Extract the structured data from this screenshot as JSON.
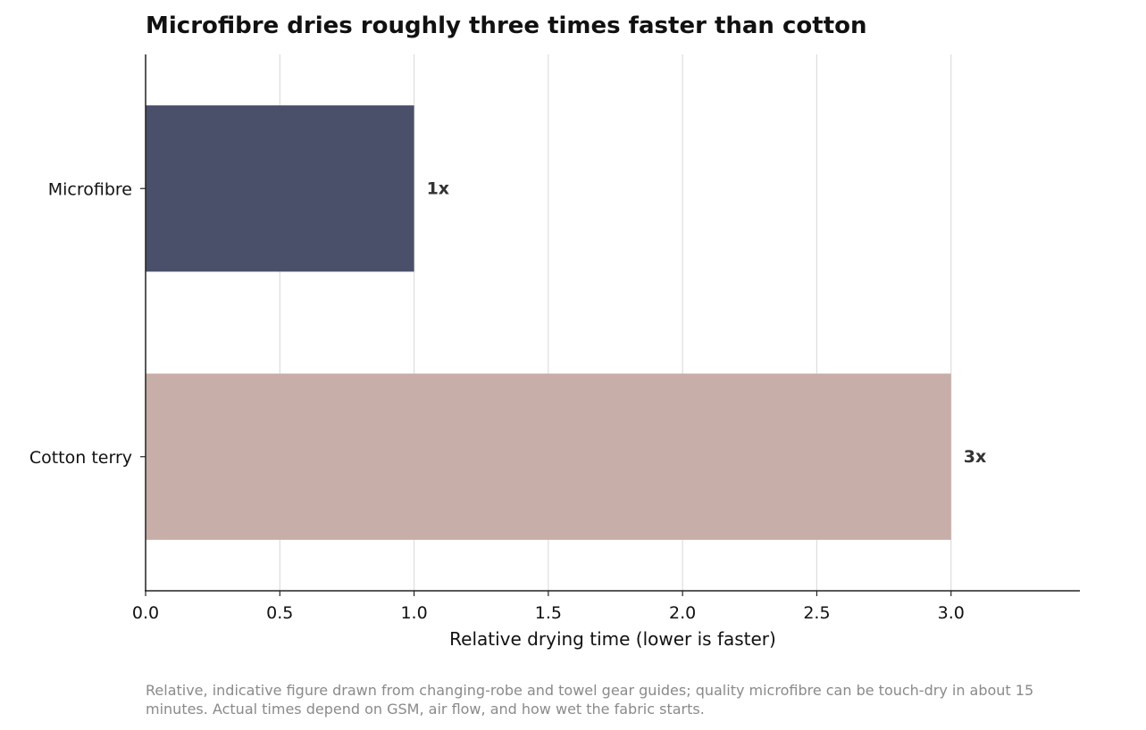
{
  "chart_data": {
    "type": "bar",
    "orientation": "horizontal",
    "title": "Microfibre dries roughly three times faster than cotton",
    "xlabel": "Relative drying time (lower is faster)",
    "ylabel": "",
    "categories": [
      "Microfibre",
      "Cotton terry"
    ],
    "values": [
      1,
      3
    ],
    "data_labels": [
      "1x",
      "3x"
    ],
    "colors": [
      "#4a4f6a",
      "#c8aea8"
    ],
    "xlim": [
      0,
      3.48
    ],
    "xticks": [
      0.0,
      0.5,
      1.0,
      1.5,
      2.0,
      2.5,
      3.0
    ],
    "xtick_labels": [
      "0.0",
      "0.5",
      "1.0",
      "1.5",
      "2.0",
      "2.5",
      "3.0"
    ],
    "grid": "vertical",
    "legend": "none",
    "footnote": [
      "Relative, indicative figure drawn from changing-robe and towel gear guides; quality microfibre can be touch-dry in about 15",
      "minutes. Actual times depend on GSM, air flow, and how wet the fabric starts."
    ]
  }
}
